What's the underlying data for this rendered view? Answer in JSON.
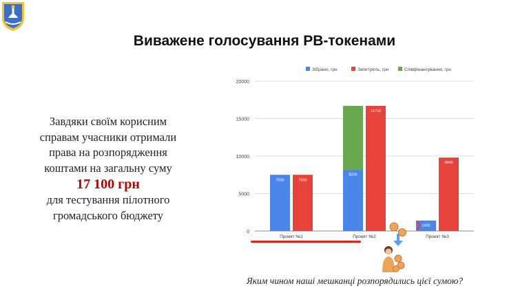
{
  "slide": {
    "title": "Виважене голосування PB-токенами",
    "left_text": {
      "line1": "Завдяки своїм корисним",
      "line2": "справам учасники отримали",
      "line3": "права на розпорядження",
      "line4": "коштами на загальну суму",
      "amount": "17 100 грн",
      "line5": "для тестування пілотного",
      "line6": "громадського бюджету"
    },
    "bottom_question": "Яким чином наші мешканці розпорядились цієї сумою?"
  },
  "colors": {
    "collected": "#4a86e8",
    "requested": "#e8433a",
    "cofinanced": "#6aa84f",
    "accent_red": "#d9261c"
  },
  "chart_data": {
    "type": "bar",
    "categories": [
      "Проект №1",
      "Проект №2",
      "Проект №3"
    ],
    "series": [
      {
        "name": "Зібрано, грн",
        "values": [
          7500,
          8200,
          1400
        ],
        "color": "#4a86e8",
        "stack": "a",
        "labels": [
          "7500",
          "8200",
          "1400"
        ]
      },
      {
        "name": "Співфінансування, грн",
        "values": [
          0,
          8500,
          0
        ],
        "color": "#6aa84f",
        "stack": "a",
        "labels": [
          "",
          "",
          ""
        ]
      },
      {
        "name": "Запитують, грн",
        "values": [
          7500,
          16700,
          9800
        ],
        "color": "#e8433a",
        "stack": "b",
        "labels": [
          "7500",
          "16700",
          "9800"
        ]
      }
    ],
    "legend": [
      "Зібрано, грн",
      "Запитують, грн",
      "Співфінансування, грн"
    ],
    "legend_position": "top",
    "yticks": [
      "0",
      "5000",
      "10000",
      "15000",
      "20000"
    ],
    "ylim": [
      0,
      20000
    ],
    "grid": true
  }
}
